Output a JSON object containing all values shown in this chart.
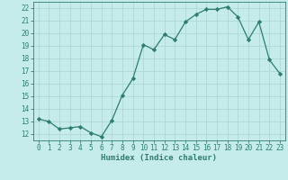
{
  "x": [
    0,
    1,
    2,
    3,
    4,
    5,
    6,
    7,
    8,
    9,
    10,
    11,
    12,
    13,
    14,
    15,
    16,
    17,
    18,
    19,
    20,
    21,
    22,
    23
  ],
  "y": [
    13.2,
    13.0,
    12.4,
    12.5,
    12.6,
    12.1,
    11.8,
    13.1,
    15.1,
    16.4,
    19.1,
    18.7,
    19.9,
    19.5,
    20.9,
    21.5,
    21.9,
    21.9,
    22.1,
    21.3,
    19.5,
    20.9,
    17.9,
    16.8
  ],
  "xlabel": "Humidex (Indice chaleur)",
  "line_color": "#2e7d6e",
  "marker_color": "#2e7d6e",
  "bg_color": "#c5ecea",
  "grid_color": "#afd8d4",
  "text_color": "#2e7d6e",
  "xlim": [
    -0.5,
    23.5
  ],
  "ylim": [
    11.5,
    22.5
  ],
  "yticks": [
    12,
    13,
    14,
    15,
    16,
    17,
    18,
    19,
    20,
    21,
    22
  ],
  "xticks": [
    0,
    1,
    2,
    3,
    4,
    5,
    6,
    7,
    8,
    9,
    10,
    11,
    12,
    13,
    14,
    15,
    16,
    17,
    18,
    19,
    20,
    21,
    22,
    23
  ],
  "tick_fontsize": 5.5,
  "xlabel_fontsize": 6.5
}
